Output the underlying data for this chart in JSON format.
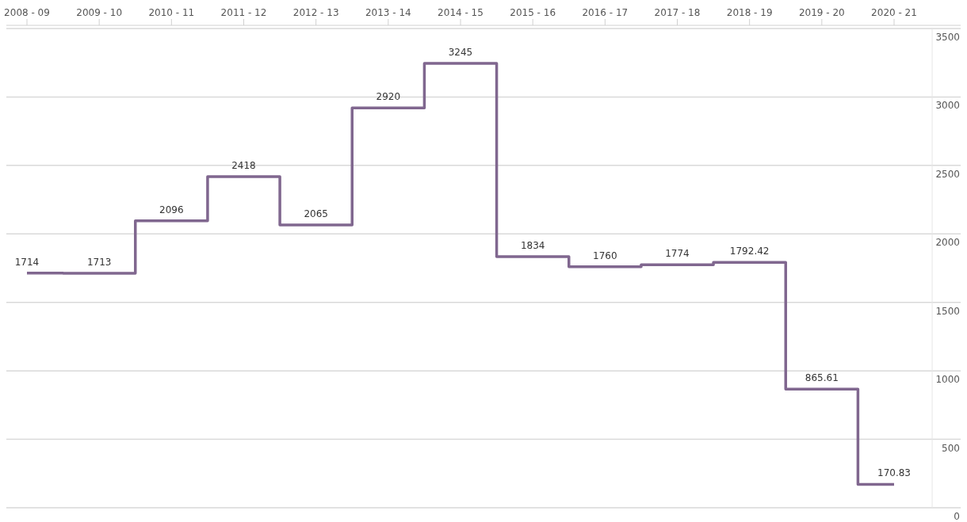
{
  "chart_data": {
    "type": "step",
    "categories": [
      "2008 - 09",
      "2009 - 10",
      "2010 - 11",
      "2011 - 12",
      "2012 - 13",
      "2013 - 14",
      "2014 - 15",
      "2015 - 16",
      "2016 - 17",
      "2017 - 18",
      "2018 - 19",
      "2019 - 20",
      "2020 - 21"
    ],
    "values": [
      1714,
      1713,
      2096,
      2418,
      2065,
      2920,
      3245,
      1834,
      1760,
      1774,
      1792.42,
      865.61,
      170.83
    ],
    "color": "#80678f",
    "ylim": [
      0,
      3500
    ],
    "yticks": [
      0,
      500,
      1000,
      1500,
      2000,
      2500,
      3000,
      3500
    ],
    "grid": "y",
    "data_labels": true
  }
}
